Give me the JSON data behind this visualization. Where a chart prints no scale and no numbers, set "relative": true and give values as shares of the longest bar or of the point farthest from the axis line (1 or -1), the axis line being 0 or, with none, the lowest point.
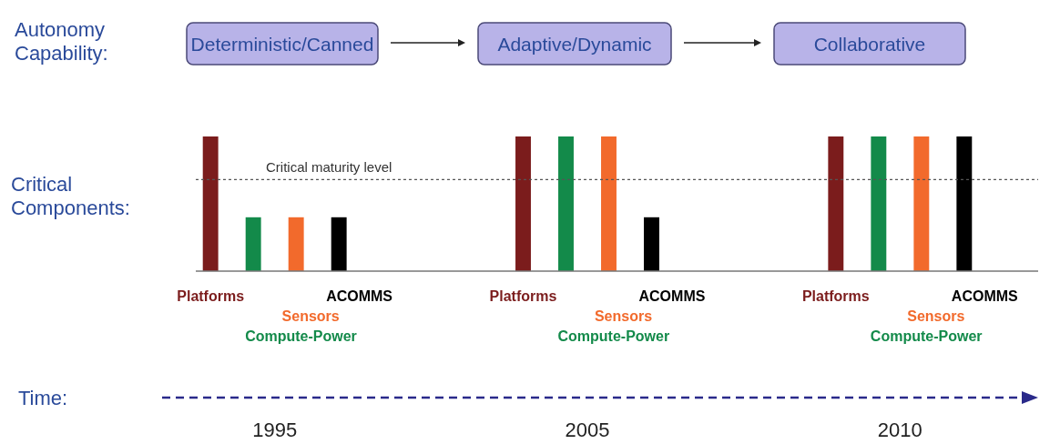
{
  "chart_data": {
    "type": "bar",
    "relative": true,
    "categories": [
      "1995",
      "2005",
      "2010"
    ],
    "series": [
      {
        "name": "Platforms",
        "color": "#7b1c1c",
        "values": [
          1,
          1,
          1
        ]
      },
      {
        "name": "Compute-Power",
        "color": "#138a4a",
        "values": [
          0.4,
          1,
          1
        ]
      },
      {
        "name": "Sensors",
        "color": "#f26a2c",
        "values": [
          0.4,
          1,
          1
        ]
      },
      {
        "name": "ACOMMS",
        "color": "#000000",
        "values": [
          0.4,
          0.4,
          1
        ]
      }
    ],
    "ref_lines": [
      {
        "axis": "y",
        "value": 0.68,
        "label": "Critical maturity level",
        "color": "#555555",
        "line_style": "dotted"
      }
    ],
    "annotations": [
      "Autonomy Capability:",
      "Deterministic/Canned",
      "Adaptive/Dynamic",
      "Collaborative",
      "Critical Components:",
      "Time:"
    ]
  }
}
